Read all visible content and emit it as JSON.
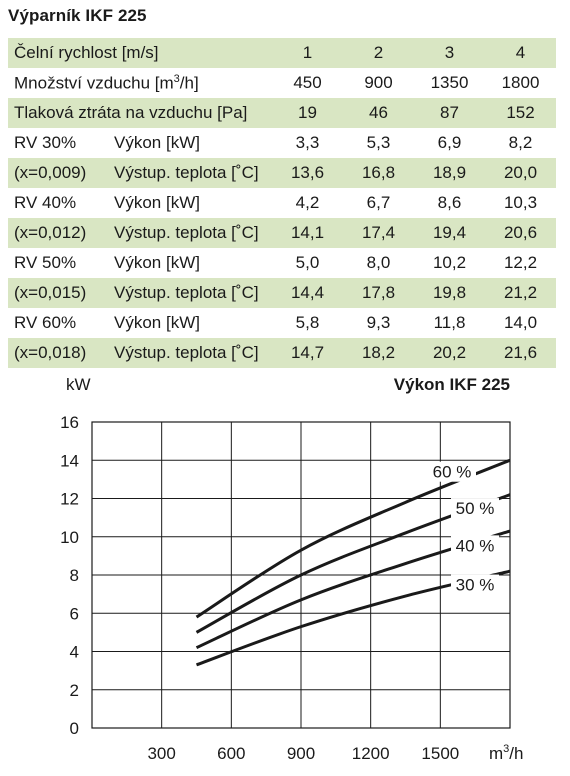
{
  "title": "Výparník IKF 225",
  "table": {
    "speed_label": "Čelní rychlost [m/s]",
    "speeds": [
      "1",
      "2",
      "3",
      "4"
    ],
    "airflow_label_pre": "Množství vzduchu [m",
    "airflow_label_sup": "3",
    "airflow_label_post": "/h]",
    "airflow": [
      "450",
      "900",
      "1350",
      "1800"
    ],
    "pressure_label": "Tlaková ztráta na vzduchu [Pa]",
    "pressure": [
      "19",
      "46",
      "87",
      "152"
    ],
    "groups": [
      {
        "rv": "RV 30%",
        "x": "(x=0,009)",
        "power_label": "Výkon [kW]",
        "power": [
          "3,3",
          "5,3",
          "6,9",
          "8,2"
        ],
        "temp_label": "Výstup. teplota [˚C]",
        "temp": [
          "13,6",
          "16,8",
          "18,9",
          "20,0"
        ]
      },
      {
        "rv": "RV 40%",
        "x": "(x=0,012)",
        "power_label": "Výkon [kW]",
        "power": [
          "4,2",
          "6,7",
          "8,6",
          "10,3"
        ],
        "temp_label": "Výstup. teplota [˚C]",
        "temp": [
          "14,1",
          "17,4",
          "19,4",
          "20,6"
        ]
      },
      {
        "rv": "RV 50%",
        "x": "(x=0,015)",
        "power_label": "Výkon [kW]",
        "power": [
          "5,0",
          "8,0",
          "10,2",
          "12,2"
        ],
        "temp_label": "Výstup. teplota [˚C]",
        "temp": [
          "14,4",
          "17,8",
          "19,8",
          "21,2"
        ]
      },
      {
        "rv": "RV 60%",
        "x": "(x=0,018)",
        "power_label": "Výkon [kW]",
        "power": [
          "5,8",
          "9,3",
          "11,8",
          "14,0"
        ],
        "temp_label": "Výstup. teplota [˚C]",
        "temp": [
          "14,7",
          "18,2",
          "20,2",
          "21,6"
        ]
      }
    ]
  },
  "chart_data": {
    "type": "line",
    "title": "Výkon IKF 225",
    "ylabel": "kW",
    "xlabel_pre": "m",
    "xlabel_sup": "3",
    "xlabel_post": "/h",
    "xlim": [
      0,
      1800
    ],
    "ylim": [
      0,
      16
    ],
    "xticks": [
      300,
      600,
      900,
      1200,
      1500
    ],
    "yticks": [
      0,
      2,
      4,
      6,
      8,
      10,
      12,
      14,
      16
    ],
    "grid": true,
    "series": [
      {
        "name": "30 %",
        "x": [
          450,
          900,
          1350,
          1800
        ],
        "y": [
          3.3,
          5.3,
          6.9,
          8.2
        ]
      },
      {
        "name": "40 %",
        "x": [
          450,
          900,
          1350,
          1800
        ],
        "y": [
          4.2,
          6.7,
          8.6,
          10.3
        ]
      },
      {
        "name": "50 %",
        "x": [
          450,
          900,
          1350,
          1800
        ],
        "y": [
          5.0,
          8.0,
          10.2,
          12.2
        ]
      },
      {
        "name": "60 %",
        "x": [
          450,
          900,
          1350,
          1800
        ],
        "y": [
          5.8,
          9.3,
          11.8,
          14.0
        ]
      }
    ]
  }
}
